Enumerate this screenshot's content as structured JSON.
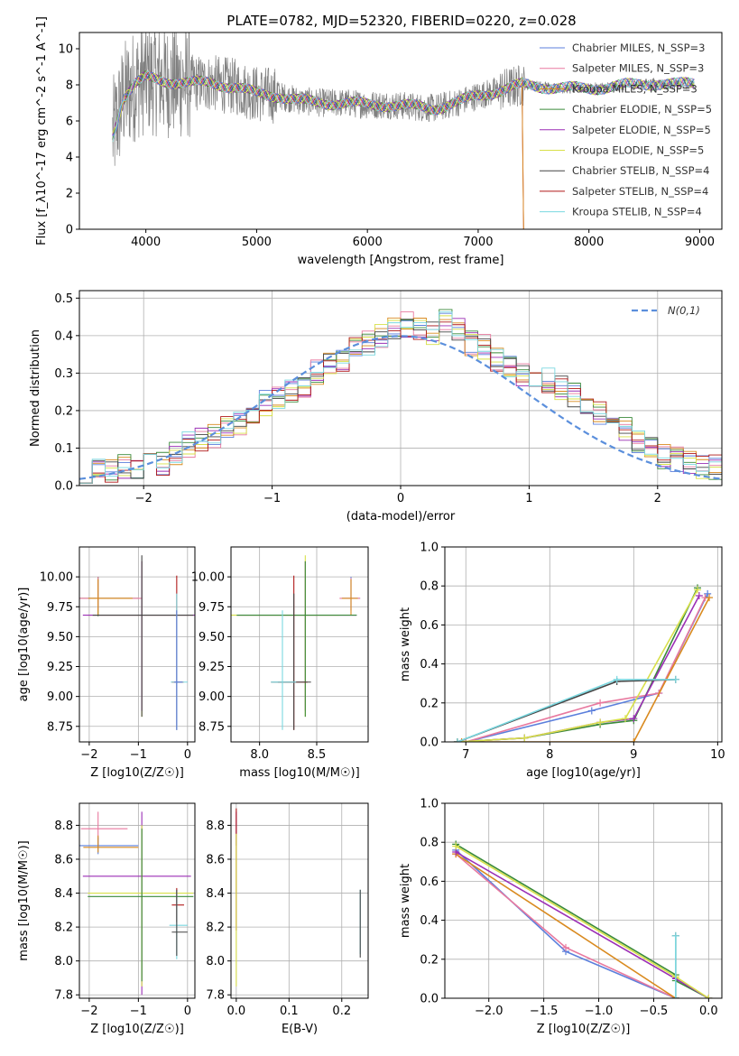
{
  "figure_title": "PLATE=0782, MJD=52320, FIBERID=0220, z=0.028",
  "model_colors": [
    "#5b7fdc",
    "#e8799f",
    "#d98a1f",
    "#3a8a3a",
    "#9b2fb5",
    "#d8e04a",
    "#444444",
    "#b01818",
    "#7ad8e0"
  ],
  "chart_data": [
    {
      "type": "line",
      "title": "PLATE=0782, MJD=52320, FIBERID=0220, z=0.028",
      "xlabel": "wavelength [Angstrom, rest frame]",
      "ylabel": "Flux [f_λ10^-17 erg cm^-2 s^-1 A^-1]",
      "xlim": [
        3400,
        9200
      ],
      "ylim": [
        0,
        10.9
      ],
      "xticks": [
        4000,
        5000,
        6000,
        7000,
        8000,
        9000
      ],
      "yticks": [
        0,
        2,
        4,
        6,
        8,
        10
      ],
      "data_spectrum_color": "#808080",
      "legend_position": "top-right",
      "series": [
        {
          "name": "Chabrier MILES, N_SSP=3"
        },
        {
          "name": "Salpeter MILES, N_SSP=3"
        },
        {
          "name": "Kroupa MILES, N_SSP=3"
        },
        {
          "name": "Chabrier ELODIE, N_SSP=5"
        },
        {
          "name": "Salpeter ELODIE, N_SSP=5"
        },
        {
          "name": "Kroupa ELODIE, N_SSP=5"
        },
        {
          "name": "Chabrier STELIB, N_SSP=4"
        },
        {
          "name": "Salpeter STELIB, N_SSP=4"
        },
        {
          "name": "Kroupa STELIB, N_SSP=4"
        }
      ],
      "model_continuum": {
        "x": [
          3700,
          3800,
          3900,
          4000,
          4100,
          4200,
          4400,
          4600,
          4800,
          5000,
          5200,
          5400,
          5600,
          5800,
          6000,
          6200,
          6400,
          6600,
          6800,
          7000,
          7200,
          7400,
          7600,
          7800,
          8000,
          8200,
          8400,
          8600,
          8800,
          8950
        ],
        "y": [
          5.2,
          7.3,
          8.0,
          8.4,
          8.3,
          8.2,
          8.1,
          8.1,
          7.9,
          7.5,
          7.4,
          7.1,
          7.0,
          7.0,
          6.9,
          6.9,
          6.8,
          6.7,
          7.0,
          7.4,
          7.7,
          8.0,
          7.9,
          7.8,
          7.8,
          7.9,
          8.0,
          8.1,
          8.0,
          8.1
        ]
      }
    },
    {
      "type": "bar",
      "xlabel": "(data-model)/error",
      "ylabel": "Normed distribution",
      "xlim": [
        -2.5,
        2.5
      ],
      "ylim": [
        0,
        0.52
      ],
      "xticks": [
        -2,
        -1,
        0,
        1,
        2
      ],
      "yticks": [
        0.0,
        0.1,
        0.2,
        0.3,
        0.4,
        0.5
      ],
      "grid": true,
      "legend_entry": "N(0,1)",
      "bin_edges_start": -2.5,
      "bin_width": 0.1,
      "histogram_values": [
        0.04,
        0.04,
        0.04,
        0.05,
        0.05,
        0.06,
        0.06,
        0.09,
        0.11,
        0.12,
        0.13,
        0.16,
        0.17,
        0.19,
        0.22,
        0.23,
        0.25,
        0.27,
        0.3,
        0.32,
        0.33,
        0.36,
        0.38,
        0.4,
        0.42,
        0.43,
        0.42,
        0.41,
        0.44,
        0.42,
        0.38,
        0.37,
        0.34,
        0.31,
        0.29,
        0.28,
        0.28,
        0.26,
        0.24,
        0.21,
        0.19,
        0.17,
        0.15,
        0.12,
        0.1,
        0.08,
        0.07,
        0.06,
        0.05,
        0.05
      ]
    },
    {
      "type": "scatter",
      "xlabel": "Z [log10(Z/Z☉)]",
      "ylabel": "age [log10(age/yr)]",
      "xlim": [
        -2.2,
        0.15
      ],
      "ylim": [
        8.62,
        10.25
      ],
      "xticks": [
        -2,
        -1,
        0
      ],
      "yticks": [
        8.75,
        9.0,
        9.25,
        9.5,
        9.75,
        10.0
      ],
      "grid": true,
      "points": [
        {
          "x": -1.82,
          "y": 9.82,
          "xerr": [
            0.52,
            0.82
          ],
          "yerr": [
            0.15,
            0.18
          ],
          "c": 3
        },
        {
          "x": -1.82,
          "y": 9.82,
          "xerr": [
            0.4,
            0.9
          ],
          "yerr": [
            0.1,
            0.18
          ],
          "c": 1
        },
        {
          "x": -1.82,
          "y": 9.82,
          "xerr": [
            0.2,
            0.7
          ],
          "yerr": [
            0.14,
            0.16
          ],
          "c": 2
        },
        {
          "x": -0.93,
          "y": 9.68,
          "xerr": [
            1.1,
            1.05
          ],
          "yerr": [
            0.85,
            0.45
          ],
          "c": 5
        },
        {
          "x": -0.93,
          "y": 9.68,
          "xerr": [
            1.2,
            1.1
          ],
          "yerr": [
            0.8,
            0.45
          ],
          "c": 4
        },
        {
          "x": -0.93,
          "y": 9.68,
          "xerr": [
            1.0,
            1.05
          ],
          "yerr": [
            0.85,
            0.5
          ],
          "c": 6
        },
        {
          "x": -0.22,
          "y": 9.12,
          "xerr": [
            0.1,
            0.14
          ],
          "yerr": [
            0.4,
            0.89
          ],
          "c": 7
        },
        {
          "x": -0.22,
          "y": 9.12,
          "xerr": [
            0.12,
            0.22
          ],
          "yerr": [
            0.4,
            0.74
          ],
          "c": 8
        },
        {
          "x": -0.22,
          "y": 9.12,
          "xerr": [
            0.05,
            0.12
          ],
          "yerr": [
            0.4,
            0.6
          ],
          "c": 0
        }
      ]
    },
    {
      "type": "scatter",
      "xlabel": "mass [log10(M/M☉)]",
      "ylabel": "",
      "xlim": [
        7.75,
        8.95
      ],
      "ylim": [
        8.62,
        10.25
      ],
      "xticks": [
        8.0,
        8.5
      ],
      "yticks": [
        8.75,
        9.0,
        9.25,
        9.5,
        9.75,
        10.0
      ],
      "grid": true,
      "points": [
        {
          "x": 8.8,
          "y": 9.82,
          "xerr": [
            0.08,
            0.08
          ],
          "yerr": [
            0.1,
            0.18
          ],
          "c": 0
        },
        {
          "x": 8.8,
          "y": 9.82,
          "xerr": [
            0.1,
            0.08
          ],
          "yerr": [
            0.1,
            0.17
          ],
          "c": 1
        },
        {
          "x": 8.8,
          "y": 9.82,
          "xerr": [
            0.08,
            0.06
          ],
          "yerr": [
            0.14,
            0.16
          ],
          "c": 2
        },
        {
          "x": 8.4,
          "y": 9.68,
          "xerr": [
            0.6,
            0.45
          ],
          "yerr": [
            0.8,
            0.45
          ],
          "c": 4
        },
        {
          "x": 8.4,
          "y": 9.68,
          "xerr": [
            0.7,
            0.3
          ],
          "yerr": [
            0.85,
            0.5
          ],
          "c": 5
        },
        {
          "x": 8.4,
          "y": 9.68,
          "xerr": [
            0.6,
            0.45
          ],
          "yerr": [
            0.85,
            0.45
          ],
          "c": 3
        },
        {
          "x": 8.3,
          "y": 9.12,
          "xerr": [
            0.14,
            0.12
          ],
          "yerr": [
            0.4,
            0.89
          ],
          "c": 7
        },
        {
          "x": 8.3,
          "y": 9.12,
          "xerr": [
            0.2,
            0.15
          ],
          "yerr": [
            0.4,
            0.74
          ],
          "c": 6
        },
        {
          "x": 8.2,
          "y": 9.12,
          "xerr": [
            0.1,
            0.12
          ],
          "yerr": [
            0.4,
            0.6
          ],
          "c": 8
        }
      ]
    },
    {
      "type": "line",
      "xlabel": "age [log10(age/yr)]",
      "ylabel": "mass weight",
      "xlim": [
        6.75,
        10.05
      ],
      "ylim": [
        0,
        1.0
      ],
      "xticks": [
        7,
        8,
        9,
        10
      ],
      "yticks": [
        0.0,
        0.2,
        0.4,
        0.6,
        0.8,
        1.0
      ],
      "grid": true,
      "series": [
        {
          "c": 0,
          "x": [
            7.0,
            8.5,
            9.3,
            9.88
          ],
          "y": [
            0.0,
            0.16,
            0.25,
            0.76
          ]
        },
        {
          "c": 1,
          "x": [
            7.0,
            8.6,
            9.3,
            9.85
          ],
          "y": [
            0.0,
            0.2,
            0.25,
            0.74
          ]
        },
        {
          "c": 2,
          "x": [
            6.95,
            9.0,
            9.9
          ],
          "y": [
            0.0,
            0.0,
            0.74
          ]
        },
        {
          "c": 3,
          "x": [
            6.9,
            7.7,
            8.6,
            9.0,
            9.76
          ],
          "y": [
            0.0,
            0.02,
            0.09,
            0.11,
            0.79
          ]
        },
        {
          "c": 4,
          "x": [
            6.9,
            7.7,
            8.6,
            9.0,
            9.78
          ],
          "y": [
            0.0,
            0.02,
            0.1,
            0.12,
            0.75
          ]
        },
        {
          "c": 5,
          "x": [
            6.9,
            7.7,
            8.6,
            8.9,
            9.76
          ],
          "y": [
            0.0,
            0.02,
            0.1,
            0.12,
            0.78
          ]
        },
        {
          "c": 6,
          "x": [
            6.9,
            8.8,
            9.5
          ],
          "y": [
            0.0,
            0.31,
            0.32
          ]
        },
        {
          "c": 8,
          "x": [
            6.9,
            8.8,
            9.5
          ],
          "y": [
            0.0,
            0.32,
            0.32
          ]
        }
      ]
    },
    {
      "type": "scatter",
      "xlabel": "Z [log10(Z/Z☉)]",
      "ylabel": "mass [log10(M/M☉)]",
      "xlim": [
        -2.2,
        0.15
      ],
      "ylim": [
        7.78,
        8.93
      ],
      "xticks": [
        -2,
        -1,
        0
      ],
      "yticks": [
        7.8,
        8.0,
        8.2,
        8.4,
        8.6,
        8.8
      ],
      "grid": true,
      "points": [
        {
          "x": -1.82,
          "y": 8.78,
          "xerr": [
            0.35,
            0.6
          ],
          "yerr": [
            0.1,
            0.1
          ],
          "c": 1
        },
        {
          "x": -1.82,
          "y": 8.68,
          "xerr": [
            0.45,
            0.82
          ],
          "yerr": [
            0.05,
            0.05
          ],
          "c": 0
        },
        {
          "x": -1.82,
          "y": 8.67,
          "xerr": [
            0.3,
            0.82
          ],
          "yerr": [
            0.03,
            0.07
          ],
          "c": 2
        },
        {
          "x": -0.93,
          "y": 8.5,
          "xerr": [
            1.2,
            1.0
          ],
          "yerr": [
            0.7,
            0.38
          ],
          "c": 4
        },
        {
          "x": -0.93,
          "y": 8.4,
          "xerr": [
            1.1,
            1.05
          ],
          "yerr": [
            0.55,
            0.4
          ],
          "c": 5
        },
        {
          "x": -0.93,
          "y": 8.38,
          "xerr": [
            1.1,
            1.05
          ],
          "yerr": [
            0.5,
            0.4
          ],
          "c": 3
        },
        {
          "x": -0.22,
          "y": 8.33,
          "xerr": [
            0.1,
            0.15
          ],
          "yerr": [
            0.1,
            0.1
          ],
          "c": 7
        },
        {
          "x": -0.22,
          "y": 8.21,
          "xerr": [
            0.15,
            0.22
          ],
          "yerr": [
            0.2,
            0.2
          ],
          "c": 8
        },
        {
          "x": -0.22,
          "y": 8.17,
          "xerr": [
            0.1,
            0.22
          ],
          "yerr": [
            0.14,
            0.25
          ],
          "c": 6
        }
      ]
    },
    {
      "type": "scatter",
      "xlabel": "E(B-V)",
      "ylabel": "",
      "xlim": [
        -0.01,
        0.25
      ],
      "ylim": [
        7.78,
        8.93
      ],
      "xticks": [
        0.0,
        0.1,
        0.2
      ],
      "yticks": [
        7.8,
        8.0,
        8.2,
        8.4,
        8.6,
        8.8
      ],
      "grid": true,
      "points": [
        {
          "x": 0.0,
          "y": 8.78,
          "xerr": [
            0,
            0
          ],
          "yerr": [
            0.1,
            0.1
          ],
          "c": 4
        },
        {
          "x": 0.0,
          "y": 8.5,
          "xerr": [
            0,
            0
          ],
          "yerr": [
            0.32,
            0.4
          ],
          "c": 7
        },
        {
          "x": 0.0,
          "y": 8.3,
          "xerr": [
            0,
            0
          ],
          "yerr": [
            0.45,
            0.45
          ],
          "c": 5
        },
        {
          "x": 0.235,
          "y": 8.22,
          "xerr": [
            0,
            0
          ],
          "yerr": [
            0.18,
            0.2
          ],
          "c": 8
        },
        {
          "x": 0.235,
          "y": 8.22,
          "xerr": [
            0,
            0
          ],
          "yerr": [
            0.2,
            0.2
          ],
          "c": 6
        }
      ]
    },
    {
      "type": "line",
      "xlabel": "Z [log10(Z/Z☉)]",
      "ylabel": "mass weight",
      "xlim": [
        -2.4,
        0.12
      ],
      "ylim": [
        0,
        1.0
      ],
      "xticks": [
        -2.0,
        -1.5,
        -1.0,
        -0.5,
        0.0
      ],
      "yticks": [
        0.0,
        0.2,
        0.4,
        0.6,
        0.8,
        1.0
      ],
      "grid": true,
      "series": [
        {
          "c": 0,
          "x": [
            -2.3,
            -1.3,
            -0.3
          ],
          "y": [
            0.76,
            0.24,
            0.0
          ]
        },
        {
          "c": 1,
          "x": [
            -2.3,
            -1.3,
            -0.3
          ],
          "y": [
            0.74,
            0.26,
            0.0
          ]
        },
        {
          "c": 2,
          "x": [
            -2.3,
            -0.3
          ],
          "y": [
            0.74,
            0.0
          ]
        },
        {
          "c": 3,
          "x": [
            -2.3,
            -0.3,
            -0.3,
            0.0
          ],
          "y": [
            0.79,
            0.12,
            0.09,
            0.0
          ]
        },
        {
          "c": 4,
          "x": [
            -2.3,
            -0.3,
            0.0
          ],
          "y": [
            0.75,
            0.1,
            0.0
          ]
        },
        {
          "c": 5,
          "x": [
            -2.3,
            -0.3,
            0.0
          ],
          "y": [
            0.78,
            0.11,
            0.0
          ]
        },
        {
          "c": 6,
          "x": [
            -0.3,
            -0.3
          ],
          "y": [
            0.32,
            0.0
          ]
        },
        {
          "c": 8,
          "x": [
            -0.3,
            -0.3
          ],
          "y": [
            0.32,
            0.0
          ]
        }
      ]
    }
  ]
}
